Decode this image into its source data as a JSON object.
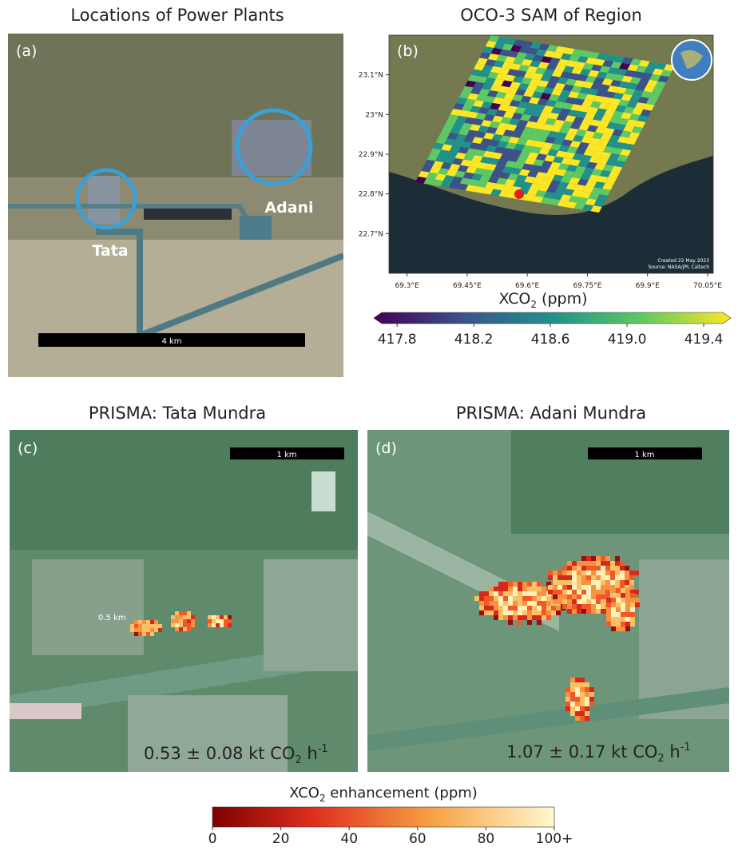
{
  "panels": {
    "a": {
      "title": "Locations of Power Plants",
      "label": "(a)",
      "site_labels": [
        "Tata",
        "Adani"
      ],
      "scale_bar": "4 km"
    },
    "b": {
      "title": "OCO-3 SAM of Region",
      "label": "(b)",
      "ylim": [
        22.6,
        23.2
      ],
      "yticks": [
        {
          "value": 23.1,
          "label": "23.1°N"
        },
        {
          "value": 23.0,
          "label": "23°N"
        },
        {
          "value": 22.9,
          "label": "22.9°N"
        },
        {
          "value": 22.8,
          "label": "22.8°N"
        },
        {
          "value": 22.7,
          "label": "22.7°N"
        }
      ],
      "xlim": [
        69.255,
        70.064
      ],
      "xticks": [
        {
          "value": 69.3,
          "label": "69.3°E"
        },
        {
          "value": 69.45,
          "label": "69.45°E"
        },
        {
          "value": 69.6,
          "label": "69.6°E"
        },
        {
          "value": 69.75,
          "label": "69.75°E"
        },
        {
          "value": 69.9,
          "label": "69.9°E"
        },
        {
          "value": 70.05,
          "label": "70.05°E"
        }
      ],
      "credit": [
        "Created 22 May 2023",
        "Source: NASA/JPL Caltech"
      ],
      "colorbar": {
        "label": {
          "main": "XCO",
          "sub": "2",
          "rest": " (ppm)"
        },
        "lim": [
          417.72,
          419.5
        ],
        "ticks": [
          417.8,
          418.2,
          418.6,
          {
            "value": 419.0,
            "label": "419.0"
          },
          419.4
        ]
      }
    },
    "c": {
      "title": "PRISMA: Tata Mundra",
      "label": "(c)",
      "scale_bar": "1 km",
      "inner_scale": "0.5 km",
      "emission": {
        "main": "0.53 ± 0.08 kt CO",
        "sub": "2",
        "unit": " h",
        "sup": "-1"
      }
    },
    "d": {
      "title": "PRISMA: Adani Mundra",
      "label": "(d)",
      "scale_bar": "1 km",
      "emission": {
        "main": "1.07 ± 0.17 kt CO",
        "sub": "2",
        "unit": " h",
        "sup": "-1"
      }
    }
  },
  "colorbar": {
    "label": {
      "main": "XCO",
      "sub": "2",
      "rest": " enhancement (ppm)"
    },
    "lim": [
      0,
      100
    ],
    "ticks": [
      0,
      20,
      40,
      60,
      80,
      {
        "value": 100,
        "label": "100+"
      }
    ]
  }
}
